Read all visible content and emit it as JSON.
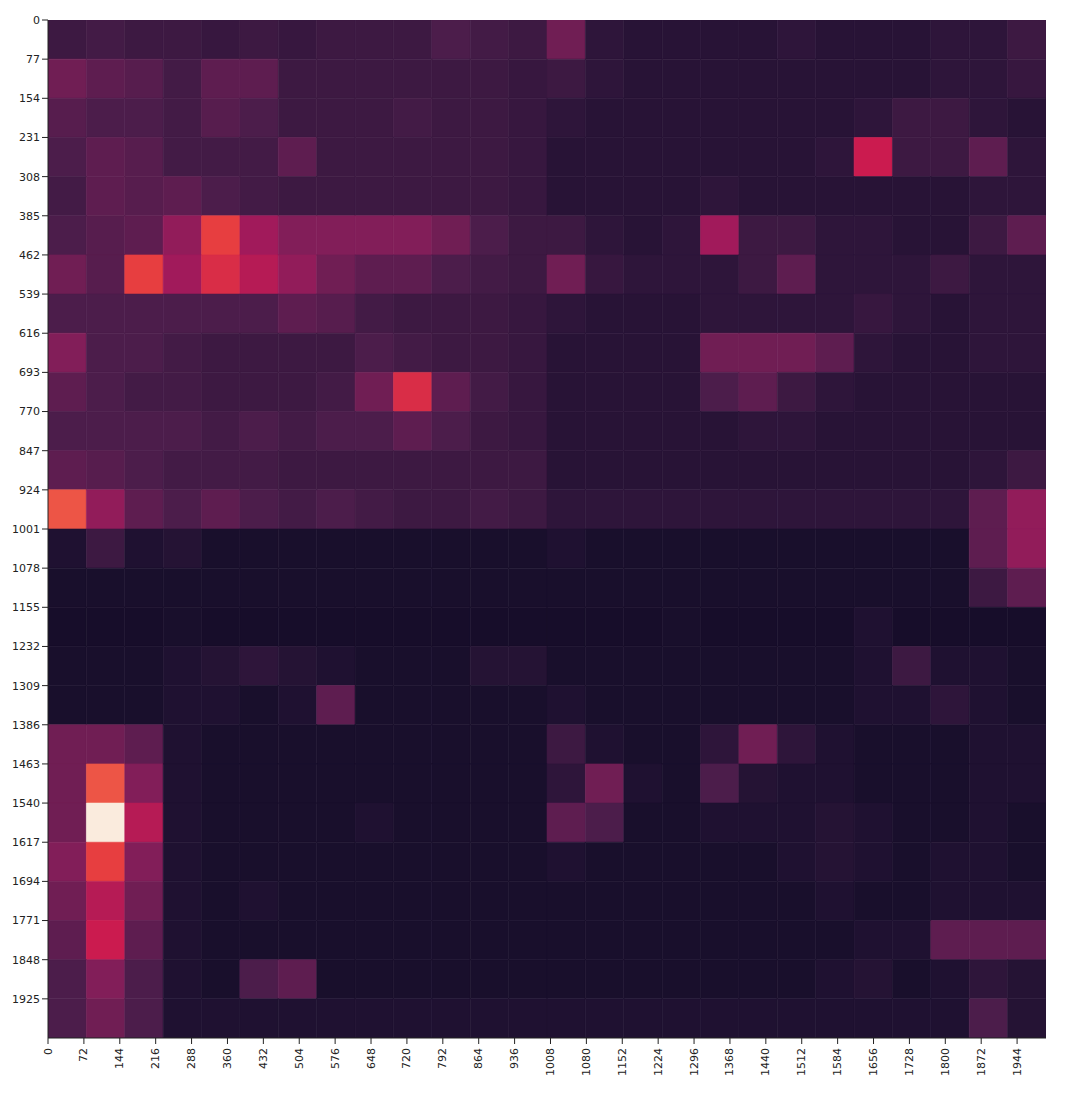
{
  "chart_data": {
    "type": "heatmap",
    "xlim": [
      0,
      2002
    ],
    "ylim": [
      0,
      2002
    ],
    "xticks": [
      0,
      72,
      144,
      216,
      288,
      360,
      432,
      504,
      576,
      648,
      720,
      792,
      864,
      936,
      1008,
      1080,
      1152,
      1224,
      1296,
      1368,
      1440,
      1512,
      1584,
      1656,
      1728,
      1800,
      1872,
      1944
    ],
    "yticks": [
      0,
      77,
      154,
      231,
      308,
      385,
      462,
      539,
      616,
      693,
      770,
      847,
      924,
      1001,
      1078,
      1155,
      1232,
      1309,
      1386,
      1463,
      1540,
      1617,
      1694,
      1771,
      1848,
      1925
    ],
    "color_range": [
      0,
      1
    ],
    "cells": [
      [
        0.2,
        0.22,
        0.2,
        0.2,
        0.18,
        0.2,
        0.18,
        0.2,
        0.2,
        0.2,
        0.25,
        0.22,
        0.2,
        0.35,
        0.15,
        0.13,
        0.13,
        0.13,
        0.13,
        0.15,
        0.13,
        0.13,
        0.13,
        0.15,
        0.15,
        0.2
      ],
      [
        0.35,
        0.3,
        0.28,
        0.22,
        0.3,
        0.3,
        0.2,
        0.2,
        0.2,
        0.2,
        0.2,
        0.2,
        0.18,
        0.2,
        0.15,
        0.13,
        0.13,
        0.13,
        0.13,
        0.13,
        0.13,
        0.13,
        0.13,
        0.15,
        0.15,
        0.18
      ],
      [
        0.28,
        0.25,
        0.25,
        0.22,
        0.28,
        0.25,
        0.2,
        0.2,
        0.2,
        0.22,
        0.2,
        0.2,
        0.18,
        0.15,
        0.13,
        0.13,
        0.13,
        0.13,
        0.13,
        0.13,
        0.13,
        0.15,
        0.2,
        0.2,
        0.15,
        0.13
      ],
      [
        0.25,
        0.3,
        0.28,
        0.22,
        0.22,
        0.22,
        0.3,
        0.2,
        0.2,
        0.2,
        0.2,
        0.2,
        0.18,
        0.13,
        0.13,
        0.13,
        0.13,
        0.13,
        0.13,
        0.13,
        0.15,
        0.6,
        0.2,
        0.2,
        0.3,
        0.15
      ],
      [
        0.22,
        0.3,
        0.28,
        0.3,
        0.25,
        0.22,
        0.2,
        0.2,
        0.2,
        0.2,
        0.2,
        0.2,
        0.18,
        0.13,
        0.13,
        0.13,
        0.13,
        0.15,
        0.13,
        0.13,
        0.13,
        0.13,
        0.13,
        0.13,
        0.15,
        0.15
      ],
      [
        0.25,
        0.28,
        0.3,
        0.45,
        0.7,
        0.5,
        0.4,
        0.4,
        0.4,
        0.4,
        0.35,
        0.25,
        0.2,
        0.2,
        0.15,
        0.13,
        0.15,
        0.5,
        0.2,
        0.2,
        0.15,
        0.15,
        0.13,
        0.13,
        0.2,
        0.3
      ],
      [
        0.35,
        0.28,
        0.7,
        0.5,
        0.65,
        0.55,
        0.45,
        0.35,
        0.3,
        0.3,
        0.25,
        0.22,
        0.2,
        0.35,
        0.18,
        0.15,
        0.15,
        0.15,
        0.2,
        0.3,
        0.15,
        0.15,
        0.15,
        0.2,
        0.15,
        0.15
      ],
      [
        0.25,
        0.25,
        0.25,
        0.25,
        0.25,
        0.25,
        0.3,
        0.28,
        0.22,
        0.2,
        0.2,
        0.2,
        0.18,
        0.15,
        0.13,
        0.13,
        0.13,
        0.15,
        0.15,
        0.15,
        0.15,
        0.18,
        0.15,
        0.13,
        0.15,
        0.15
      ],
      [
        0.4,
        0.25,
        0.25,
        0.22,
        0.2,
        0.2,
        0.2,
        0.2,
        0.25,
        0.22,
        0.2,
        0.2,
        0.18,
        0.13,
        0.13,
        0.13,
        0.13,
        0.35,
        0.35,
        0.35,
        0.3,
        0.15,
        0.13,
        0.13,
        0.15,
        0.15
      ],
      [
        0.3,
        0.25,
        0.22,
        0.22,
        0.2,
        0.2,
        0.2,
        0.22,
        0.35,
        0.65,
        0.3,
        0.22,
        0.18,
        0.13,
        0.13,
        0.13,
        0.13,
        0.25,
        0.3,
        0.2,
        0.15,
        0.13,
        0.13,
        0.13,
        0.13,
        0.13
      ],
      [
        0.25,
        0.25,
        0.25,
        0.25,
        0.22,
        0.25,
        0.22,
        0.25,
        0.25,
        0.3,
        0.25,
        0.2,
        0.18,
        0.13,
        0.13,
        0.13,
        0.13,
        0.13,
        0.15,
        0.15,
        0.13,
        0.13,
        0.13,
        0.13,
        0.13,
        0.13
      ],
      [
        0.3,
        0.28,
        0.25,
        0.22,
        0.22,
        0.22,
        0.2,
        0.2,
        0.2,
        0.2,
        0.2,
        0.2,
        0.2,
        0.13,
        0.13,
        0.13,
        0.13,
        0.13,
        0.13,
        0.13,
        0.13,
        0.13,
        0.13,
        0.13,
        0.15,
        0.2
      ],
      [
        0.75,
        0.45,
        0.3,
        0.25,
        0.3,
        0.25,
        0.22,
        0.25,
        0.22,
        0.2,
        0.2,
        0.22,
        0.2,
        0.15,
        0.15,
        0.15,
        0.15,
        0.15,
        0.15,
        0.15,
        0.15,
        0.15,
        0.15,
        0.15,
        0.3,
        0.45
      ],
      [
        0.1,
        0.2,
        0.1,
        0.12,
        0.08,
        0.08,
        0.08,
        0.08,
        0.08,
        0.08,
        0.08,
        0.08,
        0.08,
        0.1,
        0.08,
        0.08,
        0.08,
        0.08,
        0.08,
        0.08,
        0.08,
        0.08,
        0.08,
        0.08,
        0.3,
        0.45
      ],
      [
        0.08,
        0.08,
        0.08,
        0.08,
        0.08,
        0.08,
        0.08,
        0.08,
        0.08,
        0.08,
        0.08,
        0.08,
        0.08,
        0.08,
        0.08,
        0.08,
        0.08,
        0.08,
        0.08,
        0.08,
        0.08,
        0.08,
        0.08,
        0.08,
        0.2,
        0.3
      ],
      [
        0.07,
        0.07,
        0.07,
        0.08,
        0.07,
        0.07,
        0.07,
        0.07,
        0.07,
        0.07,
        0.07,
        0.07,
        0.07,
        0.07,
        0.07,
        0.07,
        0.08,
        0.07,
        0.07,
        0.07,
        0.07,
        0.1,
        0.07,
        0.07,
        0.07,
        0.07
      ],
      [
        0.08,
        0.08,
        0.08,
        0.1,
        0.12,
        0.15,
        0.12,
        0.1,
        0.08,
        0.08,
        0.08,
        0.12,
        0.12,
        0.08,
        0.08,
        0.08,
        0.08,
        0.08,
        0.08,
        0.08,
        0.08,
        0.1,
        0.2,
        0.1,
        0.1,
        0.08
      ],
      [
        0.08,
        0.08,
        0.08,
        0.1,
        0.1,
        0.08,
        0.1,
        0.3,
        0.08,
        0.08,
        0.08,
        0.08,
        0.08,
        0.1,
        0.08,
        0.08,
        0.08,
        0.08,
        0.08,
        0.08,
        0.08,
        0.1,
        0.1,
        0.15,
        0.1,
        0.08
      ],
      [
        0.35,
        0.35,
        0.3,
        0.1,
        0.08,
        0.08,
        0.08,
        0.08,
        0.08,
        0.08,
        0.08,
        0.08,
        0.08,
        0.2,
        0.1,
        0.08,
        0.08,
        0.15,
        0.35,
        0.15,
        0.1,
        0.08,
        0.08,
        0.08,
        0.1,
        0.1
      ],
      [
        0.35,
        0.75,
        0.4,
        0.1,
        0.08,
        0.08,
        0.08,
        0.08,
        0.08,
        0.08,
        0.08,
        0.08,
        0.08,
        0.15,
        0.35,
        0.1,
        0.08,
        0.25,
        0.12,
        0.1,
        0.1,
        0.08,
        0.08,
        0.08,
        0.1,
        0.1
      ],
      [
        0.35,
        1.0,
        0.55,
        0.1,
        0.08,
        0.08,
        0.08,
        0.08,
        0.1,
        0.08,
        0.08,
        0.08,
        0.08,
        0.3,
        0.25,
        0.08,
        0.08,
        0.1,
        0.1,
        0.1,
        0.12,
        0.1,
        0.08,
        0.08,
        0.1,
        0.08
      ],
      [
        0.4,
        0.7,
        0.4,
        0.1,
        0.08,
        0.08,
        0.08,
        0.08,
        0.08,
        0.08,
        0.08,
        0.08,
        0.08,
        0.1,
        0.08,
        0.08,
        0.08,
        0.08,
        0.08,
        0.1,
        0.12,
        0.1,
        0.08,
        0.1,
        0.1,
        0.08
      ],
      [
        0.35,
        0.55,
        0.35,
        0.1,
        0.08,
        0.1,
        0.08,
        0.08,
        0.08,
        0.08,
        0.08,
        0.08,
        0.08,
        0.08,
        0.08,
        0.08,
        0.08,
        0.08,
        0.08,
        0.08,
        0.1,
        0.08,
        0.08,
        0.1,
        0.1,
        0.1
      ],
      [
        0.3,
        0.6,
        0.3,
        0.1,
        0.08,
        0.08,
        0.08,
        0.08,
        0.08,
        0.08,
        0.08,
        0.08,
        0.08,
        0.08,
        0.08,
        0.08,
        0.08,
        0.08,
        0.08,
        0.08,
        0.08,
        0.1,
        0.1,
        0.3,
        0.3,
        0.3
      ],
      [
        0.25,
        0.4,
        0.25,
        0.1,
        0.08,
        0.25,
        0.3,
        0.08,
        0.08,
        0.08,
        0.08,
        0.08,
        0.08,
        0.08,
        0.08,
        0.08,
        0.08,
        0.08,
        0.08,
        0.08,
        0.1,
        0.12,
        0.08,
        0.1,
        0.15,
        0.12
      ],
      [
        0.25,
        0.35,
        0.25,
        0.1,
        0.1,
        0.1,
        0.1,
        0.1,
        0.1,
        0.1,
        0.1,
        0.1,
        0.1,
        0.1,
        0.1,
        0.1,
        0.1,
        0.1,
        0.1,
        0.1,
        0.1,
        0.1,
        0.1,
        0.1,
        0.25,
        0.12
      ]
    ]
  }
}
